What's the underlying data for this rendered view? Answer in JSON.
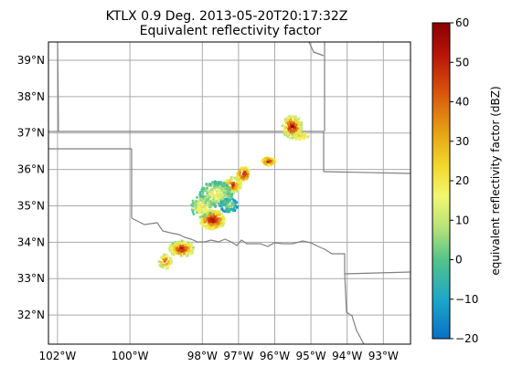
{
  "title": {
    "line1": "KTLX 0.9 Deg. 2013-05-20T20:17:32Z",
    "line2": "Equivalent reflectivity factor"
  },
  "map": {
    "lon_range": [
      -102.25,
      -92.25
    ],
    "lat_range": [
      31.2,
      39.5
    ],
    "lat_ticks": [
      {
        "value": 39,
        "label": "39°N"
      },
      {
        "value": 38,
        "label": "38°N"
      },
      {
        "value": 37,
        "label": "37°N"
      },
      {
        "value": 36,
        "label": "36°N"
      },
      {
        "value": 35,
        "label": "35°N"
      },
      {
        "value": 34,
        "label": "34°N"
      },
      {
        "value": 33,
        "label": "33°N"
      },
      {
        "value": 32,
        "label": "32°N"
      }
    ],
    "lon_ticks": [
      {
        "value": -102,
        "label": "102°W"
      },
      {
        "value": -100,
        "label": "100°W"
      },
      {
        "value": -98,
        "label": "98°W"
      },
      {
        "value": -97,
        "label": "97°W"
      },
      {
        "value": -96,
        "label": "96°W"
      },
      {
        "value": -95,
        "label": "95°W"
      },
      {
        "value": -94,
        "label": "94°W"
      },
      {
        "value": -93,
        "label": "93°W"
      }
    ],
    "grid": true,
    "grid_color": "#aaaaaa",
    "border_color": "#808080"
  },
  "colorbar": {
    "label": "equivalent reflectivity factor (dBZ)",
    "vmin": -20,
    "vmax": 60,
    "ticks": [
      {
        "value": 60,
        "label": "60"
      },
      {
        "value": 50,
        "label": "50"
      },
      {
        "value": 40,
        "label": "40"
      },
      {
        "value": 30,
        "label": "30"
      },
      {
        "value": 20,
        "label": "20"
      },
      {
        "value": 10,
        "label": "10"
      },
      {
        "value": 0,
        "label": "0"
      },
      {
        "value": -10,
        "label": "−10"
      },
      {
        "value": -20,
        "label": "−20"
      }
    ],
    "stops": [
      {
        "frac": 0.0,
        "color": "#0a6fc4"
      },
      {
        "frac": 0.12,
        "color": "#1ba6c9"
      },
      {
        "frac": 0.25,
        "color": "#55c38a"
      },
      {
        "frac": 0.35,
        "color": "#b5e27a"
      },
      {
        "frac": 0.45,
        "color": "#f2f770"
      },
      {
        "frac": 0.55,
        "color": "#f1d72a"
      },
      {
        "frac": 0.65,
        "color": "#e5a514"
      },
      {
        "frac": 0.78,
        "color": "#d8540c"
      },
      {
        "frac": 0.9,
        "color": "#b8140a"
      },
      {
        "frac": 1.0,
        "color": "#8a0000"
      }
    ]
  }
}
